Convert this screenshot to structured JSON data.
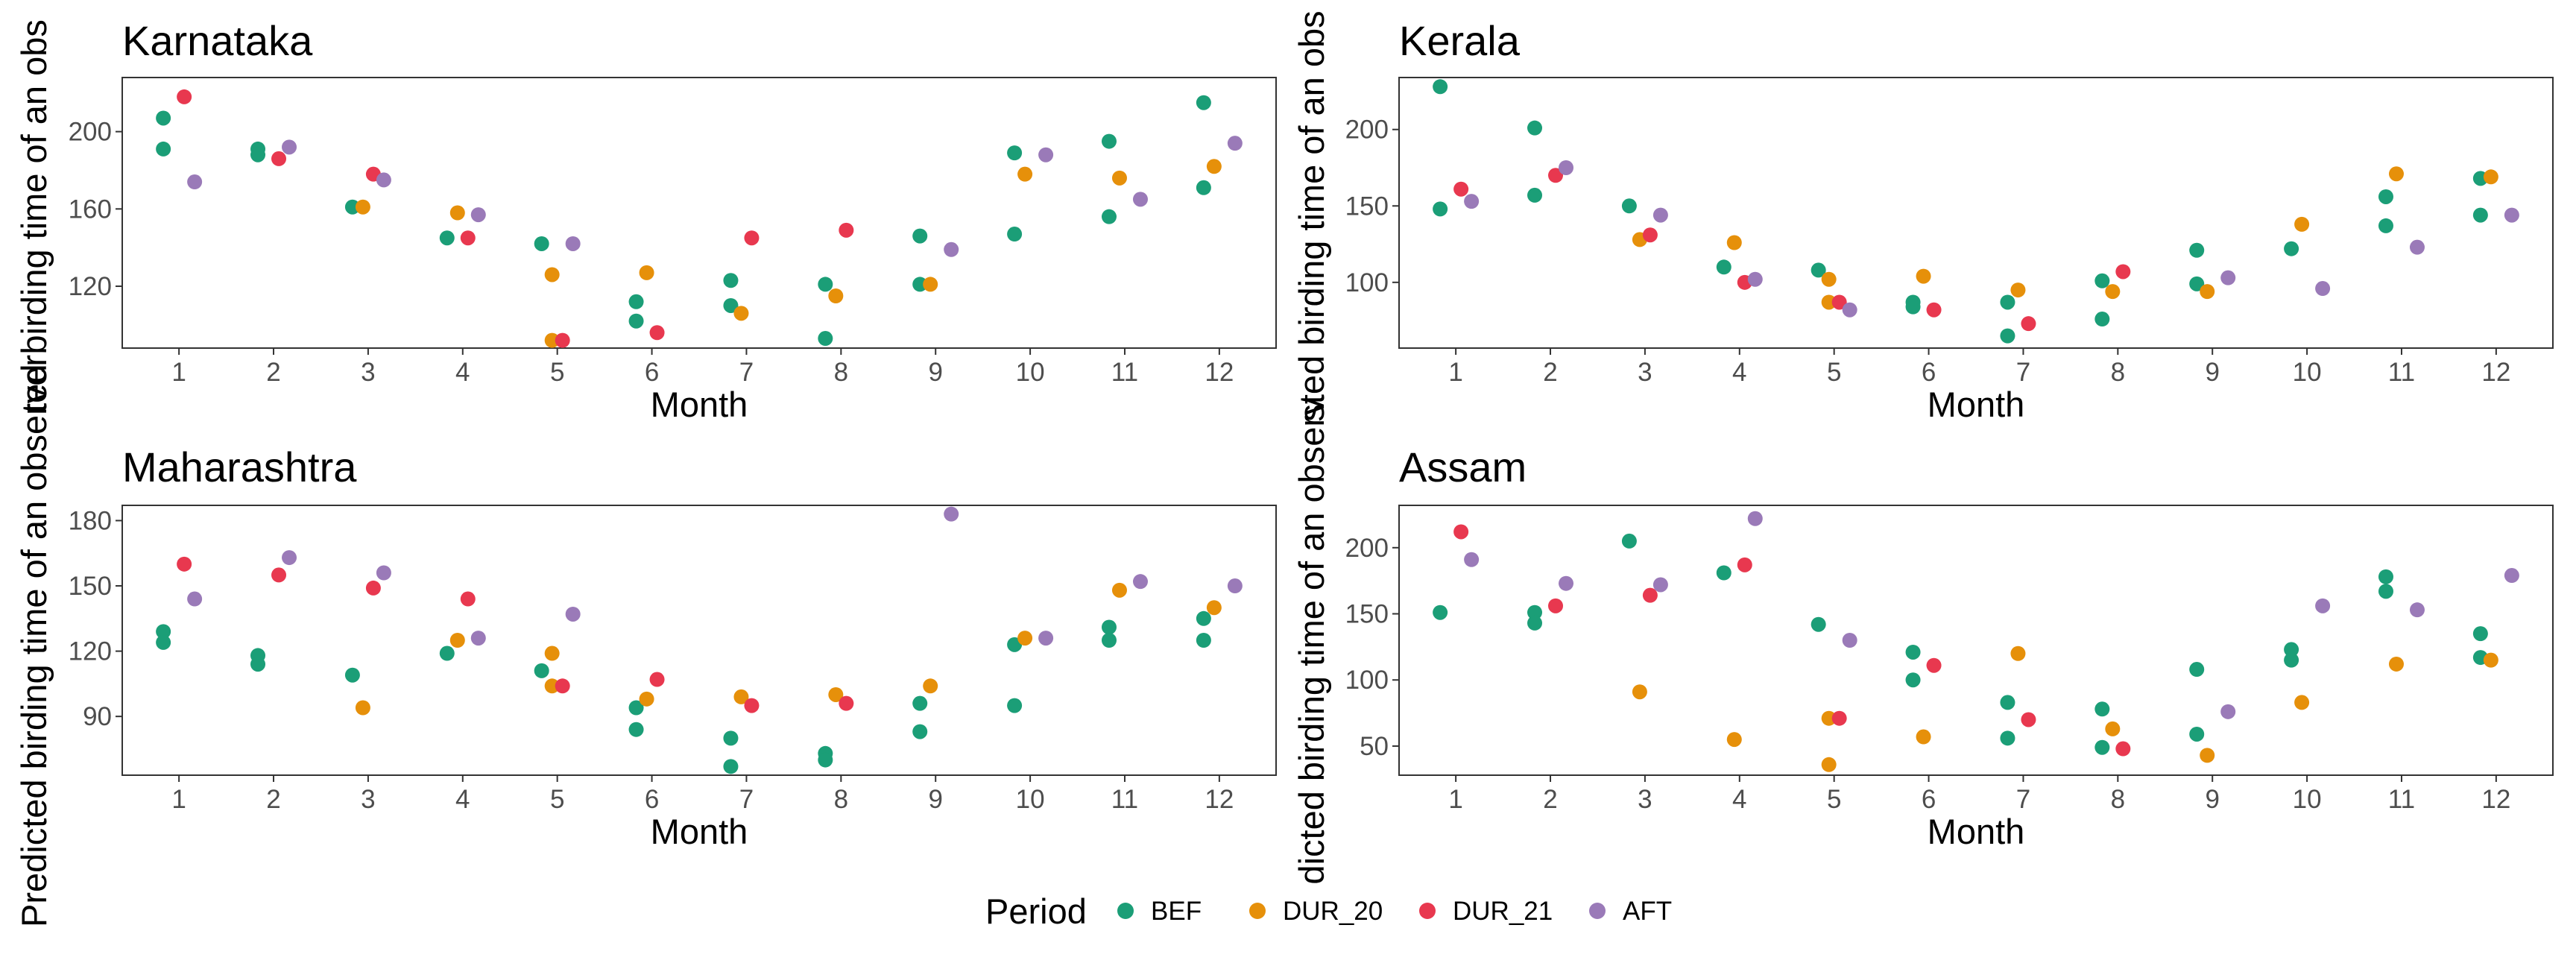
{
  "legend": {
    "title": "Period",
    "items": [
      {
        "name": "BEF",
        "color": "#1b9e77"
      },
      {
        "name": "DUR_20",
        "color": "#e6900a"
      },
      {
        "name": "DUR_21",
        "color": "#e8384f"
      },
      {
        "name": "AFT",
        "color": "#9a7ab8"
      }
    ]
  },
  "chart_data": [
    {
      "type": "scatter",
      "title": "Karnataka",
      "xlabel": "Month",
      "ylabel_visible": "ted birding time of an obs",
      "x_ticks": [
        "1",
        "2",
        "3",
        "4",
        "5",
        "6",
        "7",
        "8",
        "9",
        "10",
        "11",
        "12"
      ],
      "y_ticks": [
        120,
        160,
        200
      ],
      "ylim": [
        88,
        228
      ],
      "series": [
        {
          "name": "BEF",
          "points": [
            [
              1,
              207
            ],
            [
              1,
              191
            ],
            [
              2,
              191
            ],
            [
              2,
              188
            ],
            [
              3,
              161
            ],
            [
              4,
              145
            ],
            [
              5,
              142
            ],
            [
              6,
              112
            ],
            [
              6,
              102
            ],
            [
              7,
              123
            ],
            [
              7,
              110
            ],
            [
              8,
              121
            ],
            [
              8,
              93
            ],
            [
              9,
              146
            ],
            [
              9,
              121
            ],
            [
              10,
              189
            ],
            [
              10,
              147
            ],
            [
              11,
              195
            ],
            [
              11,
              156
            ],
            [
              12,
              215
            ],
            [
              12,
              171
            ]
          ]
        },
        {
          "name": "DUR_20",
          "points": [
            [
              3,
              161
            ],
            [
              4,
              158
            ],
            [
              5,
              126
            ],
            [
              5,
              92
            ],
            [
              6,
              127
            ],
            [
              7,
              106
            ],
            [
              8,
              115
            ],
            [
              9,
              121
            ],
            [
              10,
              178
            ],
            [
              11,
              176
            ],
            [
              12,
              182
            ]
          ]
        },
        {
          "name": "DUR_21",
          "points": [
            [
              1,
              218
            ],
            [
              2,
              186
            ],
            [
              3,
              178
            ],
            [
              4,
              145
            ],
            [
              5,
              92
            ],
            [
              6,
              96
            ],
            [
              7,
              145
            ],
            [
              8,
              149
            ]
          ]
        },
        {
          "name": "AFT",
          "points": [
            [
              1,
              174
            ],
            [
              2,
              192
            ],
            [
              3,
              175
            ],
            [
              4,
              157
            ],
            [
              5,
              142
            ],
            [
              9,
              139
            ],
            [
              10,
              188
            ],
            [
              11,
              165
            ],
            [
              12,
              194
            ]
          ]
        }
      ]
    },
    {
      "type": "scatter",
      "title": "Kerala",
      "xlabel": "Month",
      "ylabel_visible": "sted birding time of an obs",
      "x_ticks": [
        "1",
        "2",
        "3",
        "4",
        "5",
        "6",
        "7",
        "8",
        "9",
        "10",
        "11",
        "12"
      ],
      "y_ticks": [
        100,
        150,
        200
      ],
      "ylim": [
        57,
        234
      ],
      "series": [
        {
          "name": "BEF",
          "points": [
            [
              1,
              228
            ],
            [
              1,
              148
            ],
            [
              2,
              201
            ],
            [
              2,
              157
            ],
            [
              3,
              150
            ],
            [
              4,
              110
            ],
            [
              5,
              108
            ],
            [
              6,
              87
            ],
            [
              6,
              84
            ],
            [
              7,
              87
            ],
            [
              7,
              65
            ],
            [
              8,
              101
            ],
            [
              8,
              76
            ],
            [
              9,
              121
            ],
            [
              9,
              99
            ],
            [
              10,
              122
            ],
            [
              11,
              156
            ],
            [
              11,
              137
            ],
            [
              12,
              168
            ],
            [
              12,
              144
            ]
          ]
        },
        {
          "name": "DUR_20",
          "points": [
            [
              3,
              128
            ],
            [
              4,
              126
            ],
            [
              5,
              102
            ],
            [
              5,
              87
            ],
            [
              6,
              104
            ],
            [
              7,
              95
            ],
            [
              8,
              94
            ],
            [
              9,
              94
            ],
            [
              10,
              138
            ],
            [
              11,
              171
            ],
            [
              12,
              169
            ]
          ]
        },
        {
          "name": "DUR_21",
          "points": [
            [
              1,
              161
            ],
            [
              2,
              170
            ],
            [
              3,
              131
            ],
            [
              4,
              100
            ],
            [
              5,
              87
            ],
            [
              6,
              82
            ],
            [
              7,
              73
            ],
            [
              8,
              107
            ]
          ]
        },
        {
          "name": "AFT",
          "points": [
            [
              1,
              153
            ],
            [
              2,
              175
            ],
            [
              3,
              144
            ],
            [
              4,
              102
            ],
            [
              5,
              82
            ],
            [
              9,
              103
            ],
            [
              10,
              96
            ],
            [
              11,
              123
            ],
            [
              12,
              144
            ]
          ]
        }
      ]
    },
    {
      "type": "scatter",
      "title": "Maharashtra",
      "xlabel": "Month",
      "ylabel_visible": "Predicted birding time of an observer",
      "x_ticks": [
        "1",
        "2",
        "3",
        "4",
        "5",
        "6",
        "7",
        "8",
        "9",
        "10",
        "11",
        "12"
      ],
      "y_ticks": [
        90,
        120,
        150,
        180
      ],
      "ylim": [
        63,
        187
      ],
      "series": [
        {
          "name": "BEF",
          "points": [
            [
              1,
              129
            ],
            [
              1,
              124
            ],
            [
              2,
              118
            ],
            [
              2,
              114
            ],
            [
              3,
              109
            ],
            [
              4,
              119
            ],
            [
              5,
              111
            ],
            [
              6,
              94
            ],
            [
              6,
              84
            ],
            [
              7,
              80
            ],
            [
              7,
              67
            ],
            [
              8,
              73
            ],
            [
              8,
              70
            ],
            [
              9,
              96
            ],
            [
              9,
              83
            ],
            [
              10,
              95
            ],
            [
              10,
              123
            ],
            [
              11,
              131
            ],
            [
              11,
              125
            ],
            [
              12,
              135
            ],
            [
              12,
              125
            ]
          ]
        },
        {
          "name": "DUR_20",
          "points": [
            [
              3,
              94
            ],
            [
              4,
              125
            ],
            [
              5,
              119
            ],
            [
              5,
              104
            ],
            [
              6,
              98
            ],
            [
              7,
              99
            ],
            [
              8,
              100
            ],
            [
              9,
              104
            ],
            [
              10,
              126
            ],
            [
              11,
              148
            ],
            [
              12,
              140
            ]
          ]
        },
        {
          "name": "DUR_21",
          "points": [
            [
              1,
              160
            ],
            [
              2,
              155
            ],
            [
              3,
              149
            ],
            [
              4,
              144
            ],
            [
              5,
              104
            ],
            [
              6,
              107
            ],
            [
              7,
              95
            ],
            [
              8,
              96
            ]
          ]
        },
        {
          "name": "AFT",
          "points": [
            [
              1,
              144
            ],
            [
              2,
              163
            ],
            [
              3,
              156
            ],
            [
              4,
              126
            ],
            [
              5,
              137
            ],
            [
              9,
              183
            ],
            [
              10,
              126
            ],
            [
              11,
              152
            ],
            [
              12,
              150
            ]
          ]
        }
      ]
    },
    {
      "type": "scatter",
      "title": "Assam",
      "xlabel": "Month",
      "ylabel_visible": "dicted birding time of an observ",
      "x_ticks": [
        "1",
        "2",
        "3",
        "4",
        "5",
        "6",
        "7",
        "8",
        "9",
        "10",
        "11",
        "12"
      ],
      "y_ticks": [
        50,
        100,
        150,
        200
      ],
      "ylim": [
        28,
        232
      ],
      "series": [
        {
          "name": "BEF",
          "points": [
            [
              1,
              151
            ],
            [
              2,
              151
            ],
            [
              2,
              143
            ],
            [
              3,
              205
            ],
            [
              4,
              181
            ],
            [
              5,
              142
            ],
            [
              6,
              121
            ],
            [
              6,
              100
            ],
            [
              7,
              83
            ],
            [
              7,
              56
            ],
            [
              8,
              78
            ],
            [
              8,
              49
            ],
            [
              9,
              108
            ],
            [
              9,
              59
            ],
            [
              10,
              123
            ],
            [
              10,
              115
            ],
            [
              11,
              178
            ],
            [
              11,
              167
            ],
            [
              12,
              135
            ],
            [
              12,
              117
            ]
          ]
        },
        {
          "name": "DUR_20",
          "points": [
            [
              3,
              91
            ],
            [
              4,
              55
            ],
            [
              5,
              71
            ],
            [
              5,
              36
            ],
            [
              6,
              57
            ],
            [
              7,
              120
            ],
            [
              8,
              63
            ],
            [
              9,
              43
            ],
            [
              10,
              83
            ],
            [
              11,
              112
            ],
            [
              12,
              115
            ]
          ]
        },
        {
          "name": "DUR_21",
          "points": [
            [
              1,
              212
            ],
            [
              2,
              156
            ],
            [
              3,
              164
            ],
            [
              4,
              187
            ],
            [
              5,
              71
            ],
            [
              6,
              111
            ],
            [
              7,
              70
            ],
            [
              8,
              48
            ]
          ]
        },
        {
          "name": "AFT",
          "points": [
            [
              1,
              191
            ],
            [
              2,
              173
            ],
            [
              3,
              172
            ],
            [
              4,
              222
            ],
            [
              5,
              130
            ],
            [
              9,
              76
            ],
            [
              10,
              156
            ],
            [
              11,
              153
            ],
            [
              12,
              179
            ]
          ]
        }
      ]
    }
  ]
}
